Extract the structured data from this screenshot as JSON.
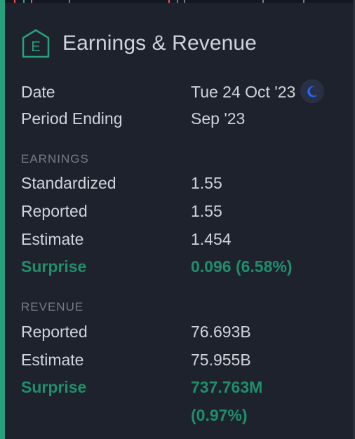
{
  "header": {
    "icon_letter": "E",
    "title": "Earnings & Revenue"
  },
  "date": {
    "label": "Date",
    "value": "Tue 24 Oct '23",
    "timing_icon": "moon-icon"
  },
  "period": {
    "label": "Period Ending",
    "value": "Sep '23"
  },
  "earnings": {
    "section": "EARNINGS",
    "standardized": {
      "label": "Standardized",
      "value": "1.55"
    },
    "reported": {
      "label": "Reported",
      "value": "1.55"
    },
    "estimate": {
      "label": "Estimate",
      "value": "1.454"
    },
    "surprise": {
      "label": "Surprise",
      "value": "0.096 (6.58%)"
    }
  },
  "revenue": {
    "section": "REVENUE",
    "reported": {
      "label": "Reported",
      "value": "76.693B"
    },
    "estimate": {
      "label": "Estimate",
      "value": "75.955B"
    },
    "surprise": {
      "label": "Surprise",
      "value_line1": "737.763M",
      "value_line2": "(0.97%)"
    }
  },
  "colors": {
    "accent": "#26a17b",
    "positive": "#1f8f6b",
    "background": "#1e222d",
    "moon": "#2962ff"
  }
}
